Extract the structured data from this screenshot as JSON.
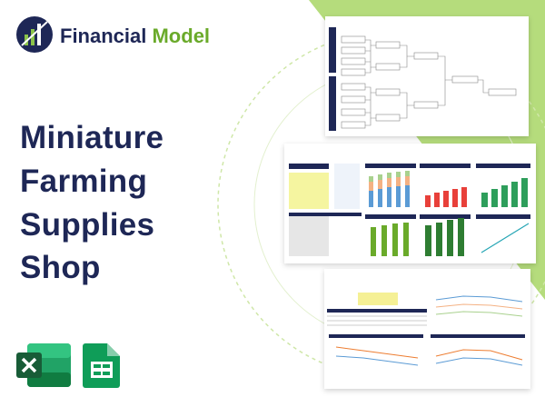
{
  "header": {
    "brand": [
      "Financial",
      "Model"
    ],
    "title": [
      "Miniature",
      "Farming",
      "Supplies",
      "Shop"
    ]
  }
}
